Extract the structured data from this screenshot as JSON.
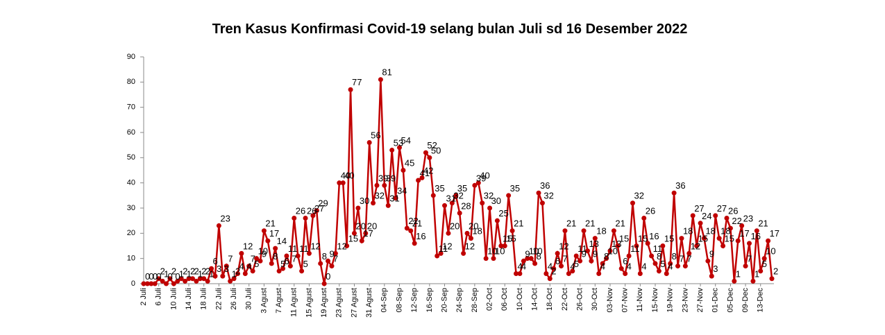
{
  "chart_data": {
    "type": "line",
    "title": "Tren Kasus Konfirmasi Covid-19 selang bulan Juli  sd 16 Desember 2022",
    "categories": [
      "2 Juli",
      null,
      null,
      null,
      "6 Juli",
      null,
      null,
      null,
      "10 Juli",
      null,
      null,
      null,
      "14 Juli",
      null,
      null,
      null,
      "18 Juli",
      null,
      null,
      null,
      "22 Juli",
      null,
      null,
      null,
      "26 Juli",
      null,
      null,
      null,
      "30 Juli",
      null,
      null,
      null,
      "3 Agust",
      null,
      null,
      null,
      "7 Agust",
      null,
      null,
      null,
      "11 Agust",
      null,
      null,
      null,
      "15 Agust",
      null,
      null,
      null,
      "19 Agust",
      null,
      null,
      null,
      "23 Agust",
      null,
      null,
      null,
      "27 Agust",
      null,
      null,
      null,
      "31 Agust",
      null,
      null,
      null,
      "04-Sep",
      null,
      null,
      null,
      "08-Sep",
      null,
      null,
      null,
      "12-Sep",
      null,
      null,
      null,
      "16-Sep",
      null,
      null,
      null,
      "20-Sep",
      null,
      null,
      null,
      "24-Sep",
      null,
      null,
      null,
      "28-Sep",
      null,
      null,
      null,
      "02-Oct",
      null,
      null,
      null,
      "06-Oct",
      null,
      null,
      null,
      "10-Oct",
      null,
      null,
      null,
      "14-Oct",
      null,
      null,
      null,
      "18-Oct",
      null,
      null,
      null,
      "22-Oct",
      null,
      null,
      null,
      "26-Oct",
      null,
      null,
      null,
      "30-Oct",
      null,
      null,
      null,
      "03-Nov",
      null,
      null,
      null,
      "07-Nov",
      null,
      null,
      null,
      "11-Nov",
      null,
      null,
      null,
      "15-Nov",
      null,
      null,
      null,
      "19-Nov",
      null,
      null,
      null,
      "23-Nov",
      null,
      null,
      null,
      "27-Nov",
      null,
      null,
      null,
      "01-Dec",
      null,
      null,
      null,
      "05-Dec",
      null,
      null,
      null,
      "09-Dec",
      null,
      null,
      null,
      "13-Dec",
      null,
      null,
      null
    ],
    "series": [
      {
        "color": "#c00000",
        "values": [
          0,
          0,
          0,
          0,
          2,
          1,
          0,
          2,
          0,
          1,
          2,
          1,
          2,
          2,
          1,
          2,
          2,
          1,
          6,
          3,
          23,
          3,
          7,
          1,
          2,
          4,
          12,
          4,
          7,
          5,
          10,
          9,
          21,
          17,
          8,
          14,
          5,
          6,
          11,
          7,
          26,
          11,
          5,
          26,
          12,
          27,
          29,
          8,
          0,
          9,
          7,
          12,
          40,
          40,
          15,
          77,
          20,
          30,
          17,
          20,
          56,
          32,
          39,
          81,
          39,
          31,
          53,
          34,
          54,
          45,
          22,
          21,
          16,
          41,
          42,
          52,
          50,
          35,
          11,
          12,
          31,
          20,
          32,
          35,
          28,
          12,
          20,
          18,
          39,
          40,
          32,
          10,
          30,
          10,
          25,
          15,
          15,
          35,
          21,
          4,
          4,
          9,
          10,
          10,
          8,
          36,
          32,
          4,
          2,
          6,
          12,
          7,
          21,
          4,
          5,
          11,
          9,
          21,
          13,
          9,
          18,
          4,
          8,
          10,
          13,
          21,
          15,
          6,
          4,
          11,
          32,
          15,
          4,
          26,
          16,
          11,
          8,
          5,
          15,
          4,
          8,
          36,
          7,
          18,
          7,
          12,
          27,
          15,
          24,
          18,
          9,
          3,
          27,
          18,
          15,
          26,
          22,
          1,
          17,
          23,
          7,
          16,
          1,
          21,
          5,
          10,
          17,
          2
        ]
      }
    ],
    "ylim": [
      0,
      90
    ],
    "yticks": [
      0,
      10,
      20,
      30,
      40,
      50,
      60,
      70,
      80,
      90
    ],
    "grid": false,
    "data_labels": true
  }
}
